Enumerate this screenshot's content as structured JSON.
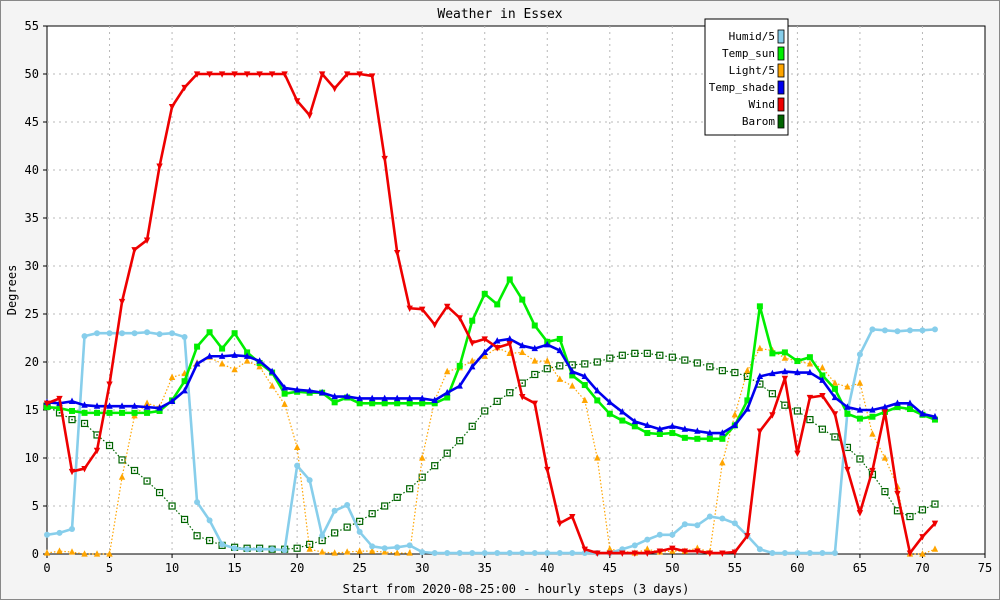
{
  "chart_data": {
    "type": "line",
    "title": "Weather in Essex",
    "xlabel": "Start from 2020-08-25:00 - hourly steps (3 days)",
    "ylabel": "Degrees",
    "xlim": [
      0,
      75
    ],
    "ylim": [
      0,
      55
    ],
    "xticks": [
      0,
      5,
      10,
      15,
      20,
      25,
      30,
      35,
      40,
      45,
      50,
      55,
      60,
      65,
      70,
      75
    ],
    "yticks": [
      0,
      5,
      10,
      15,
      20,
      25,
      30,
      35,
      40,
      45,
      50,
      55
    ],
    "grid": true,
    "legend_position": "top-right",
    "x": [
      0,
      1,
      2,
      3,
      4,
      5,
      6,
      7,
      8,
      9,
      10,
      11,
      12,
      13,
      14,
      15,
      16,
      17,
      18,
      19,
      20,
      21,
      22,
      23,
      24,
      25,
      26,
      27,
      28,
      29,
      30,
      31,
      32,
      33,
      34,
      35,
      36,
      37,
      38,
      39,
      40,
      41,
      42,
      43,
      44,
      45,
      46,
      47,
      48,
      49,
      50,
      51,
      52,
      53,
      54,
      55,
      56,
      57,
      58,
      59,
      60,
      61,
      62,
      63,
      64,
      65,
      66,
      67,
      68,
      69,
      70,
      71
    ],
    "series": [
      {
        "name": "Humid/5",
        "color": "#87ceeb",
        "marker": "circle",
        "line": "solid",
        "values": [
          2.0,
          2.2,
          2.6,
          22.7,
          23.0,
          23.0,
          23.0,
          23.0,
          23.1,
          22.9,
          23.0,
          22.6,
          5.4,
          3.5,
          1.0,
          0.6,
          0.5,
          0.5,
          0.5,
          0.4,
          9.2,
          7.7,
          1.9,
          4.5,
          5.1,
          2.3,
          0.8,
          0.6,
          0.7,
          0.9,
          0.2,
          0.1,
          0.1,
          0.1,
          0.1,
          0.1,
          0.1,
          0.1,
          0.1,
          0.1,
          0.1,
          0.1,
          0.1,
          0.1,
          0.1,
          0.1,
          0.5,
          0.9,
          1.5,
          2.0,
          2.0,
          3.1,
          3.0,
          3.9,
          3.7,
          3.2,
          1.9,
          0.5,
          0.1,
          0.1,
          0.1,
          0.1,
          0.1,
          0.1,
          14.8,
          20.8,
          23.4,
          23.3,
          23.2,
          23.3,
          23.3,
          23.4
        ]
      },
      {
        "name": "Temp_sun",
        "color": "#00ee00",
        "marker": "square",
        "line": "solid",
        "values": [
          15.3,
          15.2,
          14.9,
          14.7,
          14.7,
          14.7,
          14.7,
          14.7,
          14.7,
          14.9,
          16.0,
          18.0,
          21.6,
          23.1,
          21.4,
          23.0,
          21.0,
          19.9,
          18.9,
          16.7,
          16.9,
          16.8,
          16.8,
          15.8,
          16.3,
          15.7,
          15.7,
          15.7,
          15.7,
          15.7,
          15.7,
          15.7,
          16.3,
          19.6,
          24.3,
          27.1,
          26.0,
          28.6,
          26.5,
          23.8,
          22.1,
          22.4,
          18.6,
          17.6,
          16.0,
          14.6,
          13.9,
          13.3,
          12.6,
          12.5,
          12.6,
          12.1,
          12.0,
          12.0,
          12.0,
          13.4,
          16.0,
          25.8,
          20.9,
          21.0,
          20.1,
          20.5,
          18.6,
          17.2,
          14.6,
          14.1,
          14.3,
          14.8,
          15.3,
          15.1,
          14.5,
          14.0
        ]
      },
      {
        "name": "Light/5",
        "color": "#ffa500",
        "marker": "triangle",
        "line": "dotted",
        "values": [
          0.1,
          0.3,
          0.2,
          0.0,
          0.0,
          0.0,
          8.0,
          14.4,
          15.7,
          15.3,
          18.4,
          18.8,
          19.9,
          20.5,
          19.8,
          19.2,
          20.1,
          19.5,
          17.5,
          15.6,
          11.1,
          0.5,
          0.2,
          0.1,
          0.2,
          0.3,
          0.3,
          0.2,
          0.1,
          0.1,
          10.0,
          16.0,
          19.0,
          19.4,
          20.1,
          20.6,
          21.5,
          20.9,
          21.0,
          20.1,
          20.1,
          18.2,
          17.5,
          16.0,
          10.0,
          0.5,
          0.3,
          0.1,
          0.5,
          0.2,
          0.3,
          0.3,
          0.6,
          0.2,
          9.5,
          14.5,
          19.1,
          21.4,
          21.2,
          20.4,
          20.1,
          19.8,
          19.4,
          17.8,
          17.4,
          17.8,
          12.5,
          10.0,
          7.0,
          0.0,
          0.0,
          0.5
        ]
      },
      {
        "name": "Temp_shade",
        "color": "#0000ee",
        "marker": "triangle-up",
        "line": "solid",
        "values": [
          15.8,
          15.7,
          15.9,
          15.5,
          15.4,
          15.4,
          15.4,
          15.4,
          15.3,
          15.2,
          15.9,
          17.0,
          19.8,
          20.6,
          20.6,
          20.7,
          20.6,
          20.1,
          19.0,
          17.3,
          17.1,
          17.0,
          16.8,
          16.4,
          16.4,
          16.2,
          16.2,
          16.2,
          16.2,
          16.2,
          16.2,
          16.0,
          16.8,
          17.5,
          19.5,
          21.0,
          22.2,
          22.4,
          21.7,
          21.4,
          21.8,
          21.2,
          19.0,
          18.5,
          17.0,
          15.8,
          14.8,
          13.8,
          13.4,
          13.0,
          13.3,
          13.0,
          12.8,
          12.6,
          12.6,
          13.4,
          15.1,
          18.5,
          18.8,
          19.0,
          18.9,
          18.9,
          18.1,
          16.3,
          15.3,
          15.0,
          15.0,
          15.3,
          15.7,
          15.7,
          14.6,
          14.3
        ]
      },
      {
        "name": "Wind",
        "color": "#ee0000",
        "marker": "triangle-down",
        "line": "solid",
        "values": [
          15.7,
          16.2,
          8.6,
          8.9,
          10.8,
          17.7,
          26.3,
          31.7,
          32.7,
          40.4,
          46.6,
          48.6,
          50.0,
          50.0,
          50.0,
          50.0,
          50.0,
          50.0,
          50.0,
          50.0,
          47.2,
          45.7,
          50.0,
          48.5,
          50.0,
          50.0,
          49.8,
          41.2,
          31.4,
          25.6,
          25.5,
          23.9,
          25.8,
          24.6,
          22.0,
          22.4,
          21.5,
          21.9,
          16.4,
          15.7,
          8.8,
          3.2,
          3.9,
          0.5,
          0.1,
          0.1,
          0.1,
          0.1,
          0.1,
          0.3,
          0.6,
          0.3,
          0.3,
          0.1,
          0.1,
          0.2,
          1.9,
          12.8,
          14.5,
          18.3,
          10.5,
          16.3,
          16.5,
          14.6,
          8.8,
          4.3,
          8.7,
          14.8,
          6.3,
          0.1,
          1.8,
          3.2
        ]
      },
      {
        "name": "Barom",
        "color": "#006400",
        "marker": "square-open",
        "line": "dotted",
        "values": [
          15.4,
          14.7,
          14.0,
          13.6,
          12.4,
          11.3,
          9.8,
          8.7,
          7.6,
          6.4,
          5.0,
          3.6,
          1.9,
          1.4,
          0.9,
          0.7,
          0.6,
          0.6,
          0.5,
          0.5,
          0.6,
          1.0,
          1.4,
          2.2,
          2.8,
          3.4,
          4.2,
          5.0,
          5.9,
          6.8,
          8.0,
          9.2,
          10.5,
          11.8,
          13.3,
          14.9,
          15.9,
          16.8,
          17.8,
          18.7,
          19.3,
          19.6,
          19.7,
          19.8,
          20.0,
          20.4,
          20.7,
          20.9,
          20.9,
          20.7,
          20.5,
          20.2,
          19.9,
          19.5,
          19.1,
          18.9,
          18.5,
          17.7,
          16.7,
          15.5,
          14.9,
          14.0,
          13.0,
          12.2,
          11.1,
          9.9,
          8.3,
          6.5,
          4.5,
          3.9,
          4.6,
          5.2
        ]
      }
    ]
  }
}
